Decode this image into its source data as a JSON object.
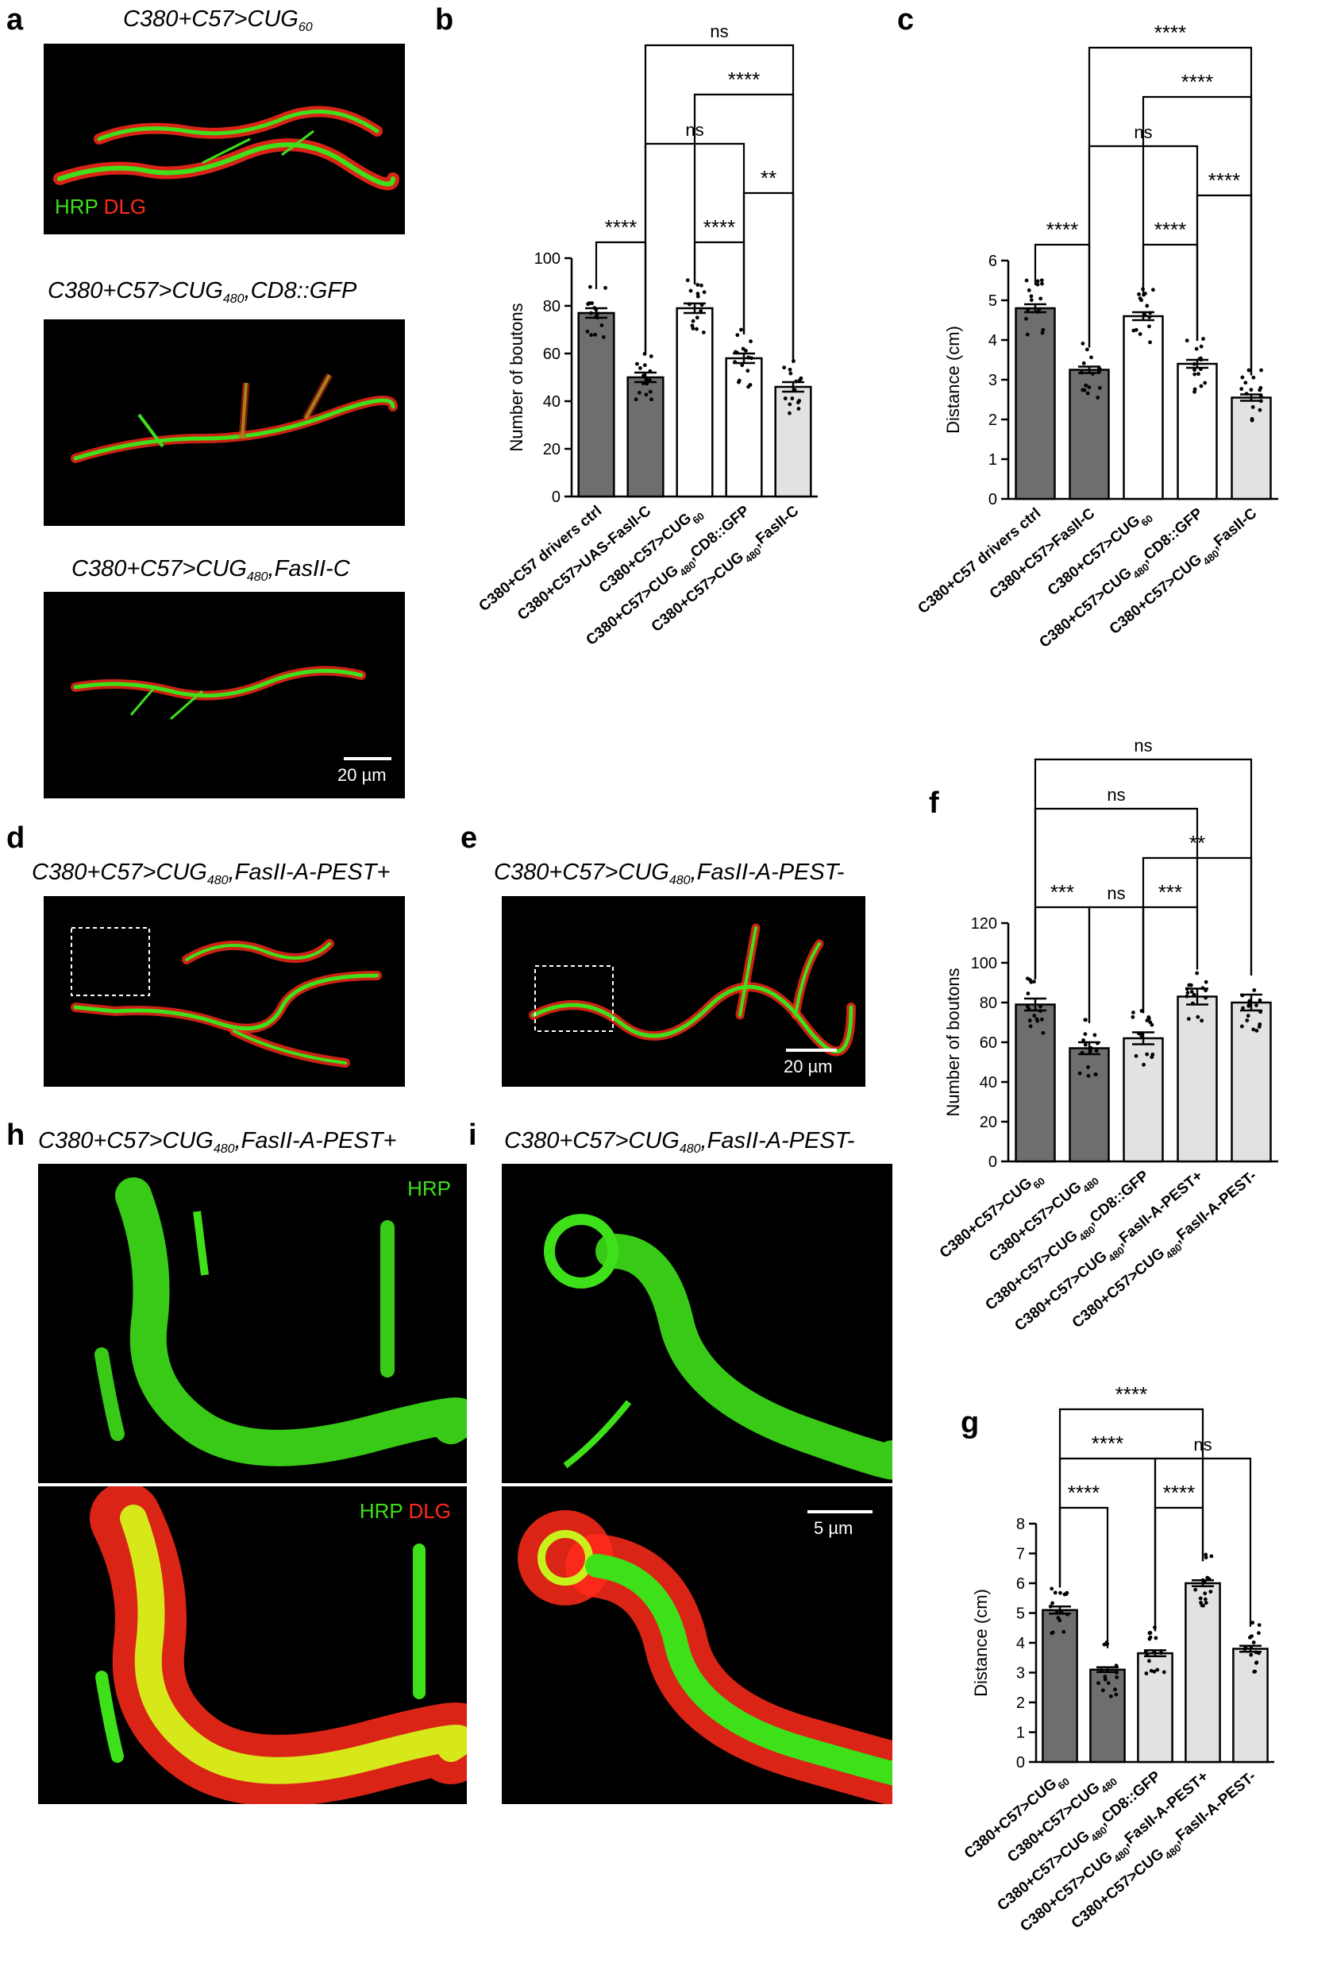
{
  "panels": {
    "a": {
      "letter": "a",
      "titles": [
        {
          "pre": "C380+C57>CUG",
          "sub": "60",
          "post": ""
        },
        {
          "pre": "C380+C57>CUG",
          "sub": "480",
          "post": ",CD8::GFP"
        },
        {
          "pre": "C380+C57>CUG",
          "sub": "480",
          "post": ",FasII-C"
        }
      ],
      "label_green": "HRP",
      "label_red": "DLG",
      "scalebar": "20 µm"
    },
    "d": {
      "letter": "d",
      "title": {
        "pre": "C380+C57>CUG",
        "sub": "480",
        "post": ",FasII-A-PEST+"
      }
    },
    "e": {
      "letter": "e",
      "title": {
        "pre": "C380+C57>CUG",
        "sub": "480",
        "post": ",FasII-A-PEST-"
      },
      "scalebar": "20 µm"
    },
    "h": {
      "letter": "h",
      "title": {
        "pre": "C380+C57>CUG",
        "sub": "480",
        "post": ",FasII-A-PEST+"
      },
      "label_green": "HRP",
      "label_red": "DLG"
    },
    "i": {
      "letter": "i",
      "title": {
        "pre": "C380+C57>CUG",
        "sub": "480",
        "post": ",FasII-A-PEST-"
      },
      "scalebar": "5 µm"
    }
  },
  "colors": {
    "dark_bar": "#6e6e6e",
    "white_bar": "#ffffff",
    "light_bar": "#e2e2e2",
    "green": "#3ee01a",
    "red": "#ff2a1a"
  },
  "chart_data": [
    {
      "id": "b",
      "letter": "b",
      "type": "bar",
      "ylabel": "Number of boutons",
      "ylim": [
        0,
        100
      ],
      "yticks": [
        0,
        20,
        40,
        60,
        80,
        100
      ],
      "categories": [
        {
          "pre": "C380+C57 drivers ctrl",
          "sub": "",
          "mid": "",
          "sub2": "",
          "post": ""
        },
        {
          "pre": "C380+C57>UAS-FasII-C",
          "sub": "",
          "mid": "",
          "sub2": "",
          "post": ""
        },
        {
          "pre": "C380+C57>CUG",
          "sub": "60",
          "mid": "",
          "sub2": "",
          "post": ""
        },
        {
          "pre": "C380+C57>CUG",
          "sub": "480",
          "mid": ",CD8::GFP",
          "sub2": "",
          "post": ""
        },
        {
          "pre": "C380+C57>CUG",
          "sub": "480",
          "mid": ",FasII-C",
          "sub2": "",
          "post": ""
        }
      ],
      "values": [
        77,
        50,
        79,
        58,
        46
      ],
      "errors": [
        2,
        2,
        2,
        2,
        2
      ],
      "fills": [
        "dark",
        "dark",
        "white",
        "white",
        "light"
      ],
      "significance": [
        {
          "from": 0,
          "to": 1,
          "label": "****",
          "level": 0
        },
        {
          "from": 2,
          "to": 3,
          "label": "****",
          "level": 0
        },
        {
          "from": 3,
          "to": 4,
          "label": "**",
          "level": 1
        },
        {
          "from": 1,
          "to": 3,
          "label": "ns",
          "level": 2
        },
        {
          "from": 2,
          "to": 4,
          "label": "****",
          "level": 3
        },
        {
          "from": 1,
          "to": 4,
          "label": "ns",
          "level": 4
        }
      ]
    },
    {
      "id": "c",
      "letter": "c",
      "type": "bar",
      "ylabel": "Distance (cm)",
      "ylim": [
        0,
        6
      ],
      "yticks": [
        0,
        1,
        2,
        3,
        4,
        5,
        6
      ],
      "categories": [
        {
          "pre": "C380+C57 drivers ctrl",
          "sub": "",
          "mid": "",
          "sub2": "",
          "post": ""
        },
        {
          "pre": "C380+C57>FasII-C",
          "sub": "",
          "mid": "",
          "sub2": "",
          "post": ""
        },
        {
          "pre": "C380+C57>CUG",
          "sub": "60",
          "mid": "",
          "sub2": "",
          "post": ""
        },
        {
          "pre": "C380+C57>CUG",
          "sub": "480",
          "mid": ",CD8::GFP",
          "sub2": "",
          "post": ""
        },
        {
          "pre": "C380+C57>CUG",
          "sub": "480",
          "mid": ",FasII-C",
          "sub2": "",
          "post": ""
        }
      ],
      "values": [
        4.8,
        3.25,
        4.6,
        3.4,
        2.55
      ],
      "errors": [
        0.1,
        0.08,
        0.1,
        0.1,
        0.08
      ],
      "fills": [
        "dark",
        "dark",
        "white",
        "white",
        "light"
      ],
      "significance": [
        {
          "from": 0,
          "to": 1,
          "label": "****",
          "level": 0
        },
        {
          "from": 2,
          "to": 3,
          "label": "****",
          "level": 0
        },
        {
          "from": 3,
          "to": 4,
          "label": "****",
          "level": 1
        },
        {
          "from": 1,
          "to": 3,
          "label": "ns",
          "level": 2
        },
        {
          "from": 2,
          "to": 4,
          "label": "****",
          "level": 3
        },
        {
          "from": 1,
          "to": 4,
          "label": "****",
          "level": 4
        }
      ]
    },
    {
      "id": "f",
      "letter": "f",
      "type": "bar",
      "ylabel": "Number of boutons",
      "ylim": [
        0,
        120
      ],
      "yticks": [
        0,
        20,
        40,
        60,
        80,
        100,
        120
      ],
      "categories": [
        {
          "pre": "C380+C57>CUG",
          "sub": "60",
          "mid": "",
          "sub2": "",
          "post": ""
        },
        {
          "pre": "C380+C57>CUG",
          "sub": "480",
          "mid": "",
          "sub2": "",
          "post": ""
        },
        {
          "pre": "C380+C57>CUG",
          "sub": "480",
          "mid": ",CD8::GFP",
          "sub2": "",
          "post": ""
        },
        {
          "pre": "C380+C57>CUG",
          "sub": "480",
          "mid": ",FasII-A-PEST+",
          "sub2": "",
          "post": ""
        },
        {
          "pre": "C380+C57>CUG",
          "sub": "480",
          "mid": ",FasII-A-PEST-",
          "sub2": "",
          "post": ""
        }
      ],
      "values": [
        79,
        57,
        62,
        83,
        80
      ],
      "errors": [
        3,
        3,
        3,
        4,
        4
      ],
      "fills": [
        "dark",
        "dark",
        "light",
        "light",
        "light"
      ],
      "significance": [
        {
          "from": 0,
          "to": 1,
          "label": "***",
          "level": 0
        },
        {
          "from": 1,
          "to": 2,
          "label": "ns",
          "level": 0
        },
        {
          "from": 2,
          "to": 3,
          "label": "***",
          "level": 0
        },
        {
          "from": 2,
          "to": 4,
          "label": "**",
          "level": 1
        },
        {
          "from": 0,
          "to": 3,
          "label": "ns",
          "level": 2
        },
        {
          "from": 0,
          "to": 4,
          "label": "ns",
          "level": 3
        }
      ]
    },
    {
      "id": "g",
      "letter": "g",
      "type": "bar",
      "ylabel": "Distance (cm)",
      "ylim": [
        0,
        8
      ],
      "yticks": [
        0,
        1,
        2,
        3,
        4,
        5,
        6,
        7,
        8
      ],
      "categories": [
        {
          "pre": "C380+C57>CUG",
          "sub": "60",
          "mid": "",
          "sub2": "",
          "post": ""
        },
        {
          "pre": "C380+C57>CUG",
          "sub": "480",
          "mid": "",
          "sub2": "",
          "post": ""
        },
        {
          "pre": "C380+C57>CUG",
          "sub": "480",
          "mid": ",CD8::GFP",
          "sub2": "",
          "post": ""
        },
        {
          "pre": "C380+C57>CUG",
          "sub": "480",
          "mid": ",FasII-A-PEST+",
          "sub2": "",
          "post": ""
        },
        {
          "pre": "C380+C57>CUG",
          "sub": "480",
          "mid": ",FasII-A-PEST-",
          "sub2": "",
          "post": ""
        }
      ],
      "values": [
        5.1,
        3.1,
        3.65,
        6.0,
        3.8
      ],
      "errors": [
        0.12,
        0.08,
        0.1,
        0.1,
        0.1
      ],
      "fills": [
        "dark",
        "dark",
        "light",
        "light",
        "light"
      ],
      "significance": [
        {
          "from": 0,
          "to": 1,
          "label": "****",
          "level": 0
        },
        {
          "from": 2,
          "to": 3,
          "label": "****",
          "level": 0
        },
        {
          "from": 0,
          "to": 2,
          "label": "****",
          "level": 1
        },
        {
          "from": 2,
          "to": 4,
          "label": "ns",
          "level": 1
        },
        {
          "from": 0,
          "to": 3,
          "label": "****",
          "level": 2
        }
      ]
    }
  ]
}
